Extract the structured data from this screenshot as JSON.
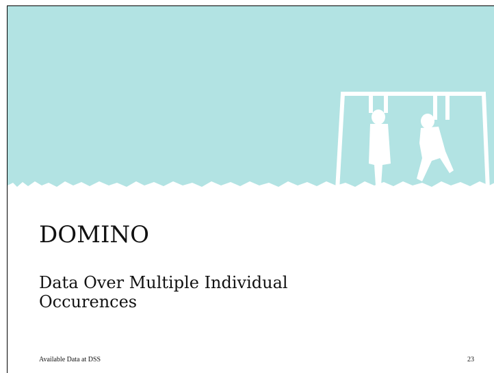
{
  "slide": {
    "title": "DOMINO",
    "subtitle": "Data Over Multiple Individual Occurences",
    "footer": "Available Data at DSS",
    "page_number": "23"
  }
}
